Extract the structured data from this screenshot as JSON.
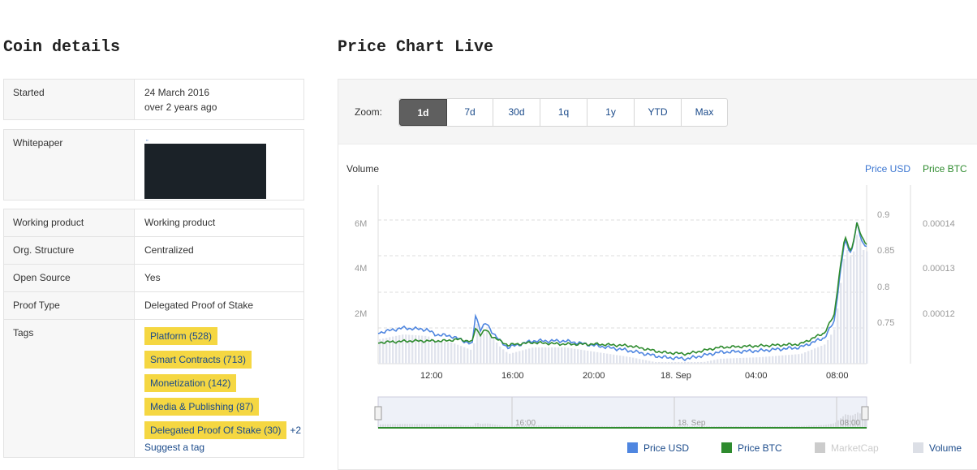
{
  "coin_details": {
    "title": "Coin details",
    "started": {
      "label": "Started",
      "date": "24 March 2016",
      "relative": "over 2 years ago"
    },
    "whitepaper": {
      "label": "Whitepaper"
    },
    "rows": [
      {
        "label": "Working product",
        "value": "Working product"
      },
      {
        "label": "Org. Structure",
        "value": "Centralized"
      },
      {
        "label": "Open Source",
        "value": "Yes"
      },
      {
        "label": "Proof Type",
        "value": "Delegated Proof of Stake"
      }
    ],
    "tags": {
      "label": "Tags",
      "items": [
        "Platform (528)",
        "Smart Contracts (713)",
        "Monetization (142)",
        "Media & Publishing (87)",
        "Delegated Proof Of Stake (30)"
      ],
      "more": "+2",
      "suggest": "Suggest a tag"
    }
  },
  "price_chart": {
    "title": "Price Chart Live",
    "zoom_label": "Zoom:",
    "zoom_options": [
      "1d",
      "7d",
      "30d",
      "1q",
      "1y",
      "YTD",
      "Max"
    ],
    "active_zoom": "1d",
    "axis_titles": {
      "volume": "Volume",
      "price_usd": "Price USD",
      "price_btc": "Price BTC"
    },
    "volume_ticks": [
      "6M",
      "4M",
      "2M"
    ],
    "usd_ticks": [
      "0.9",
      "0.85",
      "0.8",
      "0.75"
    ],
    "btc_ticks": [
      "0.00014",
      "0.00013",
      "0.00012"
    ],
    "x_ticks": [
      "12:00",
      "16:00",
      "20:00",
      "18. Sep",
      "04:00",
      "08:00"
    ],
    "navigator_ticks": [
      "16:00",
      "18. Sep",
      "08:00"
    ],
    "legend": [
      {
        "name": "Price USD",
        "color": "#4f86e0",
        "enabled": true
      },
      {
        "name": "Price BTC",
        "color": "#2e8b2e",
        "enabled": true
      },
      {
        "name": "MarketCap",
        "color": "#cccccc",
        "enabled": false
      },
      {
        "name": "Volume",
        "color": "#dcdfe6",
        "enabled": true
      }
    ],
    "colors": {
      "usd_line": "#4f86e0",
      "btc_line": "#2e8b2e",
      "volume_bar": "#e1e4ed",
      "usd_axis_title": "#3b76d1",
      "btc_axis_title": "#2e8b2e"
    }
  }
}
